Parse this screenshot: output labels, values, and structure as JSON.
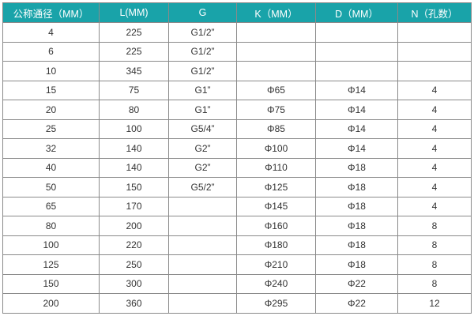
{
  "table": {
    "headers": [
      "公称通径（MM）",
      "L(MM)",
      "G",
      "K（MM）",
      "D（MM）",
      "N（孔数）"
    ],
    "rows": [
      [
        "4",
        "225",
        "G1/2”",
        "",
        "",
        ""
      ],
      [
        "6",
        "225",
        "G1/2”",
        "",
        "",
        ""
      ],
      [
        "10",
        "345",
        "G1/2”",
        "",
        "",
        ""
      ],
      [
        "15",
        "75",
        "G1”",
        "Φ65",
        "Φ14",
        "4"
      ],
      [
        "20",
        "80",
        "G1”",
        "Φ75",
        "Φ14",
        "4"
      ],
      [
        "25",
        "100",
        "G5/4”",
        "Φ85",
        "Φ14",
        "4"
      ],
      [
        "32",
        "140",
        "G2”",
        "Φ100",
        "Φ14",
        "4"
      ],
      [
        "40",
        "140",
        "G2”",
        "Φ110",
        "Φ18",
        "4"
      ],
      [
        "50",
        "150",
        "G5/2”",
        "Φ125",
        "Φ18",
        "4"
      ],
      [
        "65",
        "170",
        "",
        "Φ145",
        "Φ18",
        "4"
      ],
      [
        "80",
        "200",
        "",
        "Φ160",
        "Φ18",
        "8"
      ],
      [
        "100",
        "220",
        "",
        "Φ180",
        "Φ18",
        "8"
      ],
      [
        "125",
        "250",
        "",
        "Φ210",
        "Φ18",
        "8"
      ],
      [
        "150",
        "300",
        "",
        "Φ240",
        "Φ22",
        "8"
      ],
      [
        "200",
        "360",
        "",
        "Φ295",
        "Φ22",
        "12"
      ]
    ]
  },
  "colors": {
    "header_bg": "#19a3a9",
    "header_text": "#ffffff",
    "border": "#8a8a8a"
  }
}
